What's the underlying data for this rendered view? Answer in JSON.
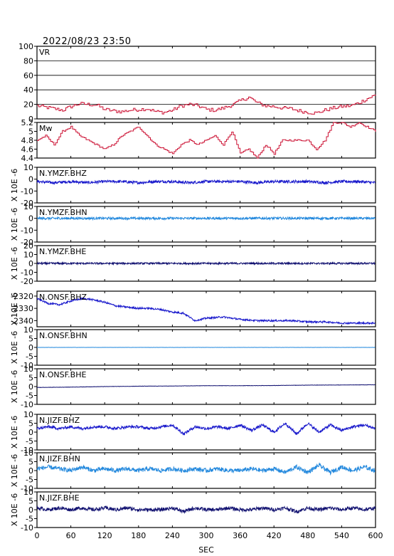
{
  "header": {
    "title": "2022/08/23 23:50"
  },
  "chart_data": {
    "type": "line",
    "title": "2022/08/23 23:50",
    "xlabel": "SEC",
    "xlim": [
      0,
      600
    ],
    "xticks": [
      0,
      60,
      120,
      180,
      240,
      300,
      360,
      420,
      480,
      540,
      600
    ],
    "grid": false,
    "panels": [
      {
        "name": "VR",
        "ylabel": "",
        "ylim": [
          0,
          100
        ],
        "yticks": [
          0,
          20,
          40,
          60,
          80,
          100
        ],
        "color": "#cc1133",
        "step": true,
        "x": [
          0,
          15,
          30,
          45,
          60,
          75,
          90,
          105,
          120,
          135,
          150,
          165,
          180,
          195,
          210,
          225,
          240,
          255,
          270,
          285,
          300,
          315,
          330,
          345,
          360,
          375,
          390,
          405,
          420,
          435,
          450,
          465,
          480,
          495,
          510,
          525,
          540,
          555,
          570,
          585,
          600
        ],
        "values": [
          18,
          16,
          14,
          12,
          17,
          21,
          20,
          19,
          13,
          11,
          10,
          12,
          13,
          14,
          10,
          9,
          12,
          18,
          20,
          18,
          13,
          12,
          15,
          19,
          25,
          30,
          22,
          18,
          17,
          15,
          14,
          11,
          9,
          8,
          12,
          15,
          17,
          18,
          22,
          28,
          33
        ]
      },
      {
        "name": "Mw",
        "ylabel": "",
        "ylim": [
          4.4,
          5.2
        ],
        "yticks": [
          4.4,
          4.6,
          4.8,
          5.0,
          5.2
        ],
        "color": "#cc1133",
        "step": true,
        "x": [
          0,
          15,
          30,
          45,
          60,
          75,
          90,
          105,
          120,
          135,
          150,
          165,
          180,
          195,
          210,
          225,
          240,
          255,
          270,
          285,
          300,
          315,
          330,
          345,
          360,
          375,
          390,
          405,
          420,
          435,
          450,
          465,
          480,
          495,
          510,
          525,
          540,
          555,
          570,
          585,
          600
        ],
        "values": [
          4.8,
          4.9,
          4.7,
          5.0,
          5.1,
          4.9,
          4.8,
          4.7,
          4.6,
          4.7,
          4.9,
          5.0,
          5.1,
          4.9,
          4.7,
          4.6,
          4.5,
          4.7,
          4.8,
          4.7,
          4.8,
          4.9,
          4.7,
          5.0,
          4.5,
          4.6,
          4.4,
          4.7,
          4.5,
          4.8,
          4.8,
          4.8,
          4.8,
          4.6,
          4.8,
          5.2,
          5.2,
          5.1,
          5.2,
          5.1,
          5.0
        ]
      },
      {
        "name": "N.YMZF.BHZ",
        "ylabel": "X 10E -6",
        "ylim": [
          -20,
          10
        ],
        "yticks": [
          -20,
          -10,
          0,
          10
        ],
        "color": "#1a1acc",
        "x": [
          0,
          30,
          60,
          90,
          120,
          150,
          180,
          210,
          240,
          270,
          300,
          330,
          360,
          390,
          420,
          450,
          480,
          510,
          540,
          570,
          600
        ],
        "values": [
          -2,
          -3,
          -2,
          -3,
          -2,
          -2,
          -3,
          -2,
          -2,
          -3,
          -2,
          -2,
          -2,
          -3,
          -2,
          -2,
          -2,
          -3,
          -2,
          -2,
          -3
        ],
        "noise": 1.2
      },
      {
        "name": "N.YMZF.BHN",
        "ylabel": "X 10E -6",
        "ylim": [
          -20,
          10
        ],
        "yticks": [
          -20,
          -10,
          0,
          10
        ],
        "color": "#2288dd",
        "x": [
          0,
          30,
          60,
          90,
          120,
          150,
          180,
          210,
          240,
          270,
          300,
          330,
          360,
          390,
          420,
          450,
          480,
          510,
          540,
          570,
          600
        ],
        "values": [
          0,
          0,
          0,
          0,
          0,
          0,
          0,
          0,
          0,
          0,
          0,
          0,
          0,
          0,
          0,
          0,
          0,
          0,
          0,
          0,
          0
        ],
        "noise": 1.0
      },
      {
        "name": "N.YMZF.BHE",
        "ylabel": "X 10E -6",
        "ylim": [
          -20,
          20
        ],
        "yticks": [
          -20,
          -10,
          0,
          10,
          20
        ],
        "color": "#101070",
        "x": [
          0,
          30,
          60,
          90,
          120,
          150,
          180,
          210,
          240,
          270,
          300,
          330,
          360,
          390,
          420,
          450,
          480,
          510,
          540,
          570,
          600
        ],
        "values": [
          0,
          0,
          0,
          0,
          0,
          0,
          0,
          0,
          0,
          0,
          0,
          0,
          0,
          0,
          0,
          0,
          0,
          0,
          0,
          0,
          0
        ],
        "noise": 1.0
      },
      {
        "name": "N.ONSF.BHZ",
        "ylabel": "X 10E -6",
        "ylim": [
          -2345,
          -2316
        ],
        "yticks": [
          -2340,
          -2330,
          -2320
        ],
        "color": "#1a1acc",
        "x": [
          0,
          20,
          40,
          60,
          80,
          100,
          120,
          140,
          160,
          180,
          200,
          220,
          240,
          260,
          280,
          300,
          330,
          360,
          390,
          420,
          450,
          480,
          510,
          540,
          570,
          600
        ],
        "values": [
          -2322,
          -2326,
          -2327,
          -2324,
          -2322,
          -2323,
          -2325,
          -2328,
          -2329,
          -2330,
          -2330,
          -2331,
          -2333,
          -2334,
          -2340,
          -2338,
          -2337,
          -2339,
          -2340,
          -2340,
          -2340,
          -2341,
          -2341,
          -2342,
          -2342,
          -2342
        ],
        "noise": 0.7
      },
      {
        "name": "N.ONSF.BHN",
        "ylabel": "X 10E -6",
        "ylim": [
          -10,
          10
        ],
        "yticks": [
          -10,
          -5,
          0,
          5,
          10
        ],
        "color": "#2288dd",
        "x": [
          0,
          60,
          120,
          180,
          240,
          300,
          360,
          420,
          480,
          540,
          600
        ],
        "values": [
          0,
          0,
          0,
          0,
          0,
          0,
          0,
          0,
          0,
          0,
          0
        ],
        "noise": 0.05
      },
      {
        "name": "N.ONSF.BHE",
        "ylabel": "X 10E -6",
        "ylim": [
          -10,
          10
        ],
        "yticks": [
          -10,
          -5,
          0,
          5,
          10
        ],
        "color": "#101070",
        "x": [
          0,
          60,
          120,
          180,
          240,
          300,
          360,
          420,
          480,
          540,
          600
        ],
        "values": [
          -0.5,
          -0.3,
          0.0,
          0.2,
          0.3,
          0.5,
          0.5,
          0.6,
          0.8,
          0.9,
          1.0
        ],
        "noise": 0.08
      },
      {
        "name": "N.JIZF.BHZ",
        "ylabel": "X 10E -6",
        "ylim": [
          -10,
          10
        ],
        "yticks": [
          -10,
          -5,
          0,
          5,
          10
        ],
        "color": "#1a1acc",
        "x": [
          0,
          20,
          40,
          60,
          80,
          100,
          120,
          140,
          160,
          180,
          200,
          220,
          240,
          260,
          280,
          300,
          320,
          340,
          360,
          380,
          400,
          420,
          440,
          460,
          480,
          500,
          520,
          540,
          560,
          580,
          600
        ],
        "values": [
          2,
          3,
          2,
          3,
          2,
          3,
          3,
          2,
          3,
          3,
          2,
          3,
          4,
          -1,
          3,
          2,
          3,
          2,
          4,
          1,
          4,
          0,
          5,
          -1,
          5,
          0,
          4,
          1,
          3,
          4,
          2
        ],
        "noise": 0.8
      },
      {
        "name": "N.JIZF.BHN",
        "ylabel": "X 10E -6",
        "ylim": [
          -10,
          10
        ],
        "yticks": [
          -10,
          -5,
          0,
          5,
          10
        ],
        "color": "#2288dd",
        "x": [
          0,
          20,
          40,
          60,
          80,
          100,
          120,
          140,
          160,
          180,
          200,
          220,
          240,
          260,
          280,
          300,
          320,
          340,
          360,
          380,
          400,
          420,
          440,
          460,
          480,
          500,
          520,
          540,
          560,
          580,
          600
        ],
        "values": [
          1,
          2,
          1,
          0,
          2,
          0,
          1,
          0,
          1,
          0,
          1,
          0,
          1,
          0,
          1,
          0,
          1,
          0,
          0,
          1,
          0,
          1,
          -1,
          2,
          -1,
          3,
          -1,
          2,
          0,
          2,
          0
        ],
        "noise": 1.2
      },
      {
        "name": "N.JIZF.BHE",
        "ylabel": "X 10E -6",
        "ylim": [
          -10,
          10
        ],
        "yticks": [
          -10,
          -5,
          0,
          5,
          10
        ],
        "color": "#101070",
        "x": [
          0,
          20,
          40,
          60,
          80,
          100,
          120,
          140,
          160,
          180,
          200,
          220,
          240,
          260,
          280,
          300,
          320,
          340,
          360,
          380,
          400,
          420,
          440,
          460,
          480,
          500,
          520,
          540,
          560,
          580,
          600
        ],
        "values": [
          1,
          0,
          1,
          0,
          1,
          0,
          1,
          0,
          1,
          0,
          0,
          0,
          1,
          -1,
          1,
          0,
          0,
          1,
          0,
          0,
          1,
          0,
          1,
          -1,
          1,
          0,
          1,
          0,
          1,
          0,
          1
        ],
        "noise": 1.0
      }
    ]
  }
}
